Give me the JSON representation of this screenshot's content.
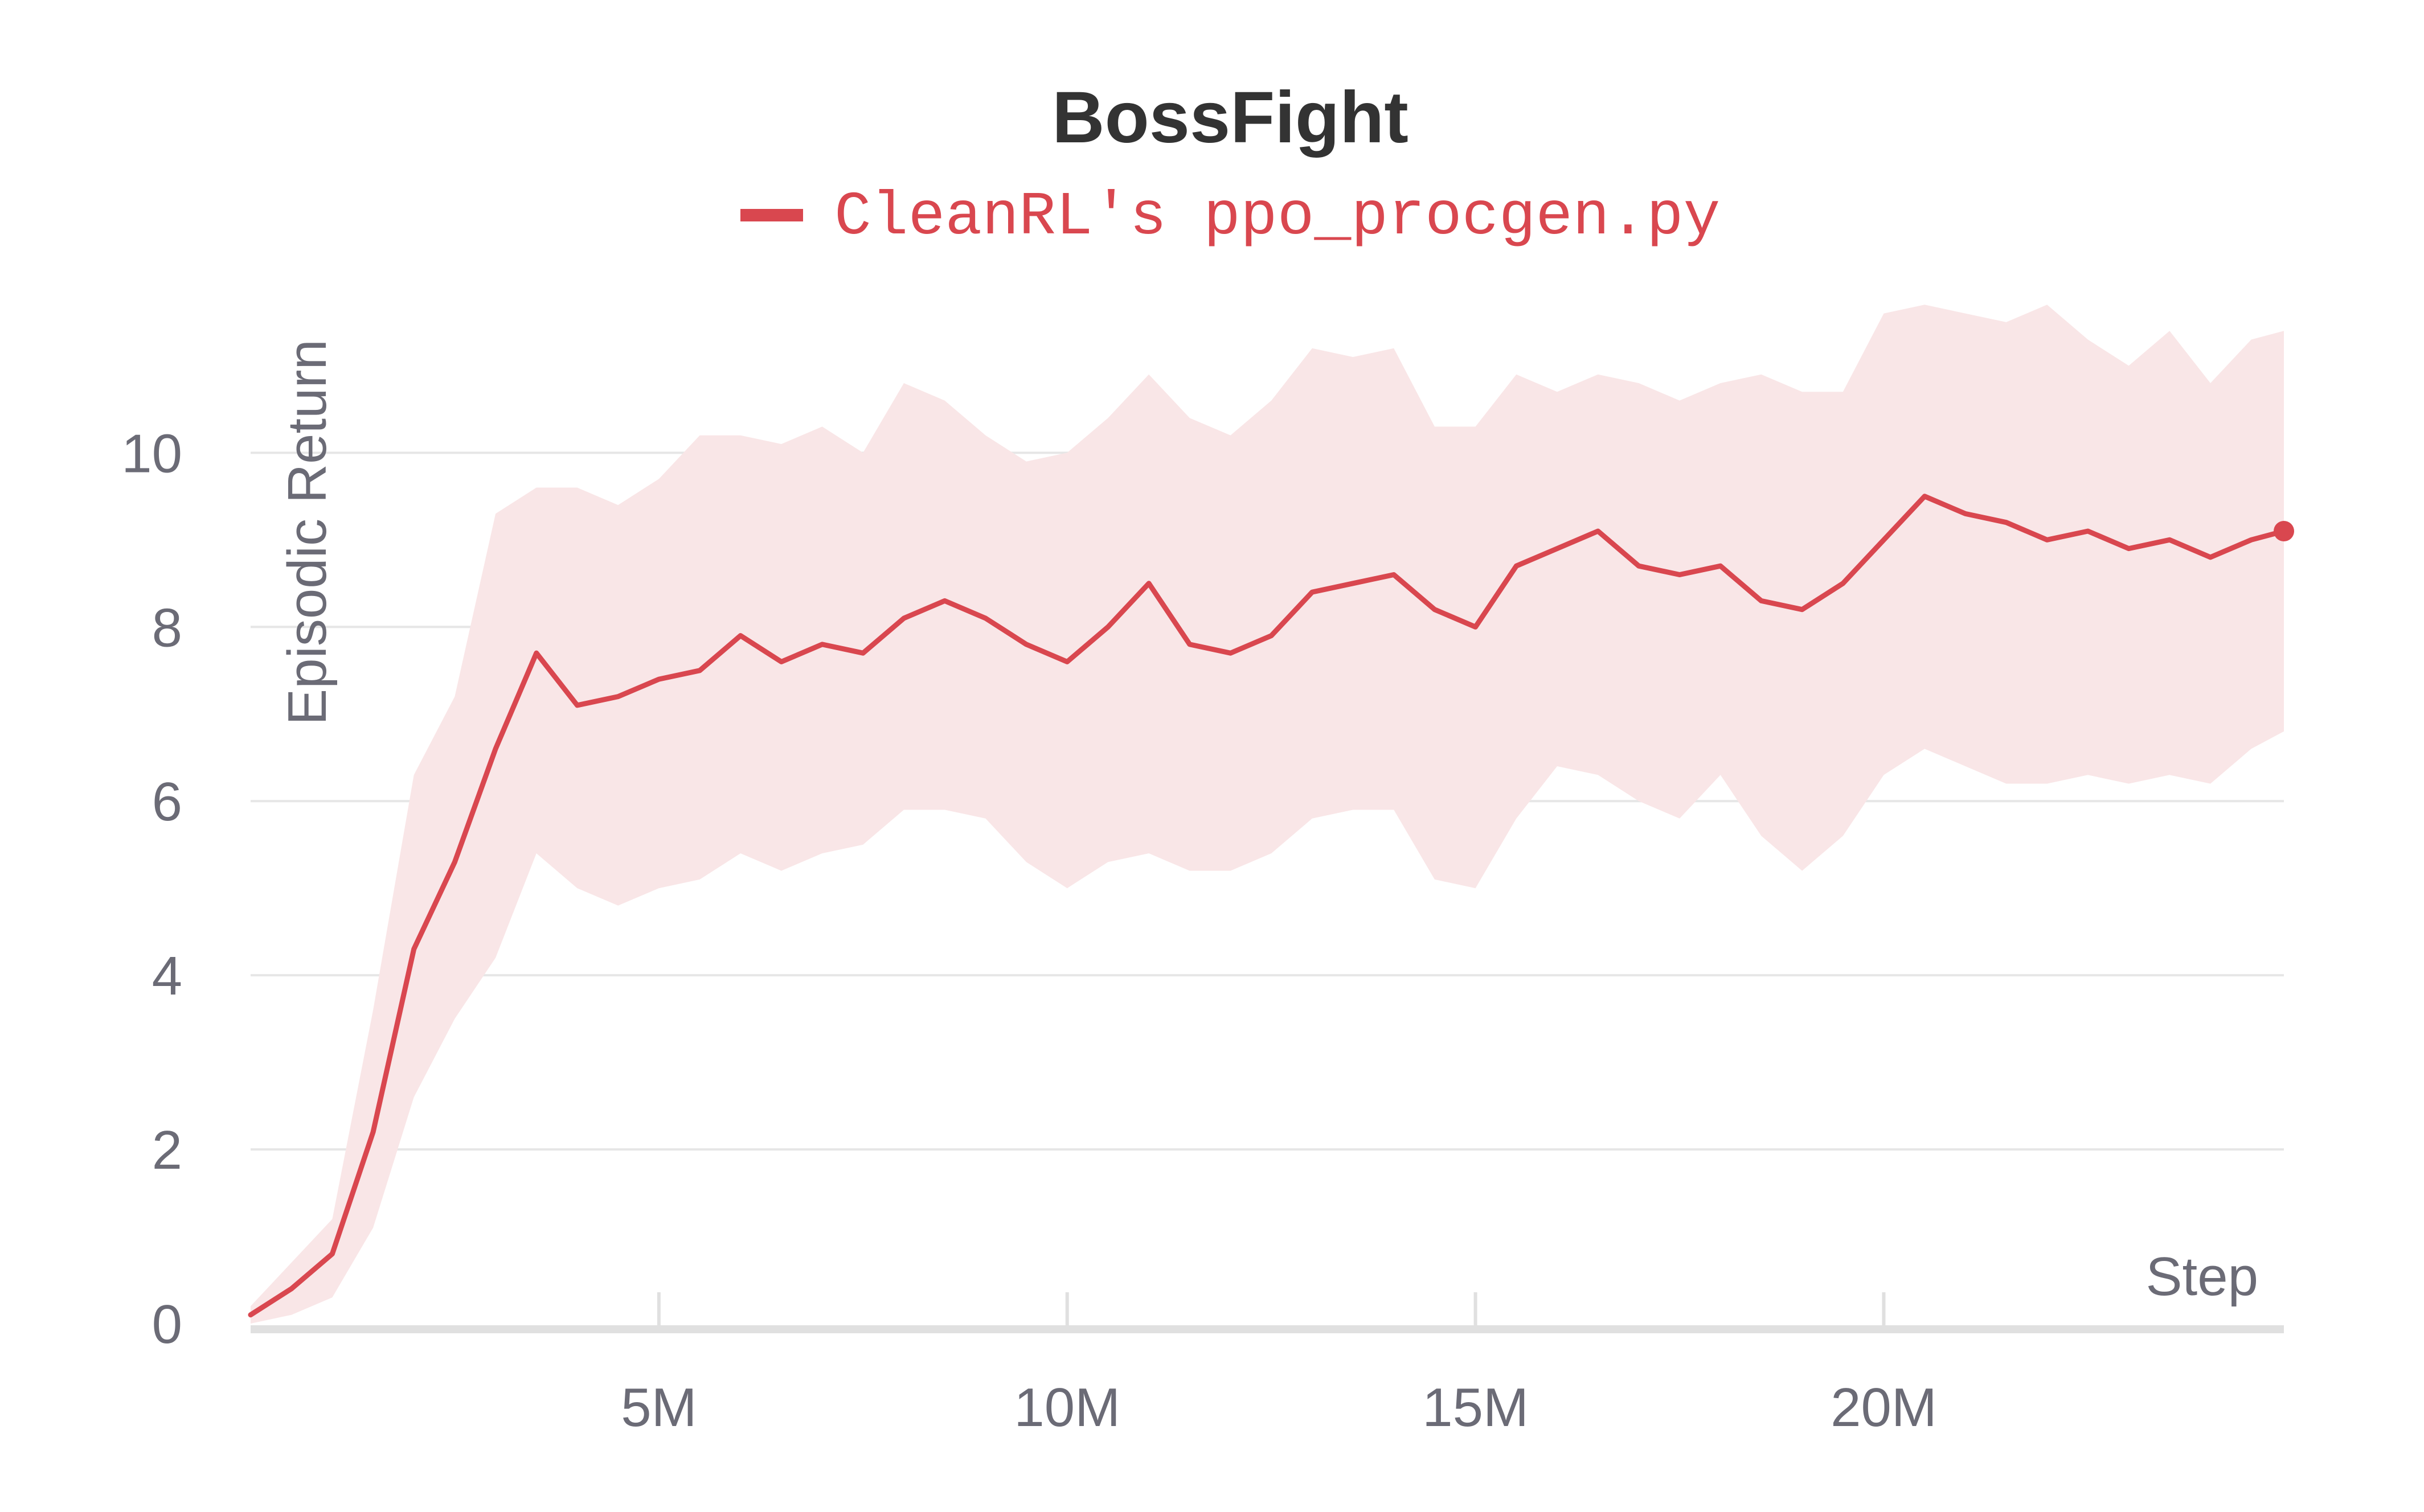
{
  "chart_data": {
    "type": "line",
    "title": "BossFight",
    "xlabel": "Step",
    "ylabel": "Episodic Return",
    "xlim": [
      0,
      24900000
    ],
    "ylim": [
      0,
      11.8
    ],
    "x_ticks": [
      {
        "value": 5000000,
        "label": "5M"
      },
      {
        "value": 10000000,
        "label": "10M"
      },
      {
        "value": 15000000,
        "label": "15M"
      },
      {
        "value": 20000000,
        "label": "20M"
      }
    ],
    "y_ticks": [
      {
        "value": 0,
        "label": "0"
      },
      {
        "value": 2,
        "label": "2"
      },
      {
        "value": 4,
        "label": "4"
      },
      {
        "value": 6,
        "label": "6"
      },
      {
        "value": 8,
        "label": "8"
      },
      {
        "value": 10,
        "label": "10"
      }
    ],
    "grid": true,
    "legend_position": "top-center",
    "colors": {
      "line": "#d9474f",
      "band": "#f9e6e7",
      "grid": "#e6e6e6",
      "axis": "#e0e0e0"
    },
    "series": [
      {
        "name": "CleanRL's ppo_procgen.py",
        "x": [
          0,
          500000,
          1000000,
          1500000,
          2000000,
          2500000,
          3000000,
          3500000,
          4000000,
          4500000,
          5000000,
          5500000,
          6000000,
          6500000,
          7000000,
          7500000,
          8000000,
          8500000,
          9000000,
          9500000,
          10000000,
          10500000,
          11000000,
          11500000,
          12000000,
          12500000,
          13000000,
          13500000,
          14000000,
          14500000,
          15000000,
          15500000,
          16000000,
          16500000,
          17000000,
          17500000,
          18000000,
          18500000,
          19000000,
          19500000,
          20000000,
          20500000,
          21000000,
          21500000,
          22000000,
          22500000,
          23000000,
          23500000,
          24000000,
          24500000,
          24900000
        ],
        "mean": [
          0.1,
          0.4,
          0.8,
          2.2,
          4.3,
          5.3,
          6.6,
          7.7,
          7.1,
          7.2,
          7.4,
          7.5,
          7.9,
          7.6,
          7.8,
          7.7,
          8.1,
          8.3,
          8.1,
          7.8,
          7.6,
          8.0,
          8.5,
          7.8,
          7.7,
          7.9,
          8.4,
          8.5,
          8.6,
          8.2,
          8.0,
          8.7,
          8.9,
          9.1,
          8.7,
          8.6,
          8.7,
          8.3,
          8.2,
          8.5,
          9.0,
          9.5,
          9.3,
          9.2,
          9.0,
          9.1,
          8.9,
          9.0,
          8.8,
          9.0,
          9.1
        ],
        "upper": [
          0.2,
          0.7,
          1.2,
          3.6,
          6.3,
          7.2,
          9.3,
          9.6,
          9.6,
          9.4,
          9.7,
          10.2,
          10.2,
          10.1,
          10.3,
          10.0,
          10.8,
          10.6,
          10.2,
          9.9,
          10.0,
          10.4,
          10.9,
          10.4,
          10.2,
          10.6,
          11.2,
          11.1,
          11.2,
          10.3,
          10.3,
          10.9,
          10.7,
          10.9,
          10.8,
          10.6,
          10.8,
          10.9,
          10.7,
          10.7,
          11.6,
          11.7,
          11.6,
          11.5,
          11.7,
          11.3,
          11.0,
          11.4,
          10.8,
          11.3,
          11.4
        ],
        "lower": [
          0.0,
          0.1,
          0.3,
          1.1,
          2.6,
          3.5,
          4.2,
          5.4,
          5.0,
          4.8,
          5.0,
          5.1,
          5.4,
          5.2,
          5.4,
          5.5,
          5.9,
          5.9,
          5.8,
          5.3,
          5.0,
          5.3,
          5.4,
          5.2,
          5.2,
          5.4,
          5.8,
          5.9,
          5.9,
          5.1,
          5.0,
          5.8,
          6.4,
          6.3,
          6.0,
          5.8,
          6.3,
          5.6,
          5.2,
          5.6,
          6.3,
          6.6,
          6.4,
          6.2,
          6.2,
          6.3,
          6.2,
          6.3,
          6.2,
          6.6,
          6.8
        ]
      }
    ]
  }
}
